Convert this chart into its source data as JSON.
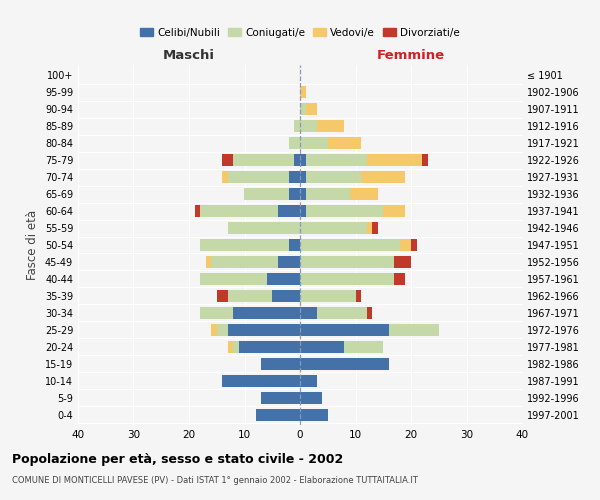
{
  "age_groups": [
    "0-4",
    "5-9",
    "10-14",
    "15-19",
    "20-24",
    "25-29",
    "30-34",
    "35-39",
    "40-44",
    "45-49",
    "50-54",
    "55-59",
    "60-64",
    "65-69",
    "70-74",
    "75-79",
    "80-84",
    "85-89",
    "90-94",
    "95-99",
    "100+"
  ],
  "birth_years": [
    "1997-2001",
    "1992-1996",
    "1987-1991",
    "1982-1986",
    "1977-1981",
    "1972-1976",
    "1967-1971",
    "1962-1966",
    "1957-1961",
    "1952-1956",
    "1947-1951",
    "1942-1946",
    "1937-1941",
    "1932-1936",
    "1927-1931",
    "1922-1926",
    "1917-1921",
    "1912-1916",
    "1907-1911",
    "1902-1906",
    "≤ 1901"
  ],
  "male": {
    "celibi": [
      8,
      7,
      14,
      7,
      11,
      13,
      12,
      5,
      6,
      4,
      2,
      0,
      4,
      2,
      2,
      1,
      0,
      0,
      0,
      0,
      0
    ],
    "coniugati": [
      0,
      0,
      0,
      0,
      1,
      2,
      6,
      8,
      12,
      12,
      16,
      13,
      14,
      8,
      11,
      11,
      2,
      1,
      0,
      0,
      0
    ],
    "vedovi": [
      0,
      0,
      0,
      0,
      1,
      1,
      0,
      0,
      0,
      1,
      0,
      0,
      0,
      0,
      1,
      0,
      0,
      0,
      0,
      0,
      0
    ],
    "divorziati": [
      0,
      0,
      0,
      0,
      0,
      0,
      0,
      2,
      0,
      0,
      0,
      0,
      1,
      0,
      0,
      2,
      0,
      0,
      0,
      0,
      0
    ]
  },
  "female": {
    "nubili": [
      5,
      4,
      3,
      16,
      8,
      16,
      3,
      0,
      0,
      0,
      0,
      0,
      1,
      1,
      1,
      1,
      0,
      0,
      0,
      0,
      0
    ],
    "coniugate": [
      0,
      0,
      0,
      0,
      7,
      9,
      9,
      10,
      17,
      17,
      18,
      12,
      14,
      8,
      10,
      11,
      5,
      3,
      1,
      0,
      0
    ],
    "vedove": [
      0,
      0,
      0,
      0,
      0,
      0,
      0,
      0,
      0,
      0,
      2,
      1,
      4,
      5,
      8,
      10,
      6,
      5,
      2,
      1,
      0
    ],
    "divorziate": [
      0,
      0,
      0,
      0,
      0,
      0,
      1,
      1,
      2,
      3,
      1,
      1,
      0,
      0,
      0,
      1,
      0,
      0,
      0,
      0,
      0
    ]
  },
  "colors": {
    "celibi": "#4472a8",
    "coniugati": "#c5d9a8",
    "vedovi": "#f5c96a",
    "divorziati": "#c0392b"
  },
  "xlim": 40,
  "title": "Popolazione per età, sesso e stato civile - 2002",
  "subtitle": "COMUNE DI MONTICELLI PAVESE (PV) - Dati ISTAT 1° gennaio 2002 - Elaborazione TUTTAITALIA.IT",
  "ylabel_left": "Fasce di età",
  "xlabel_left": "Maschi",
  "xlabel_right": "Femmine",
  "bg_color": "#f5f5f5"
}
